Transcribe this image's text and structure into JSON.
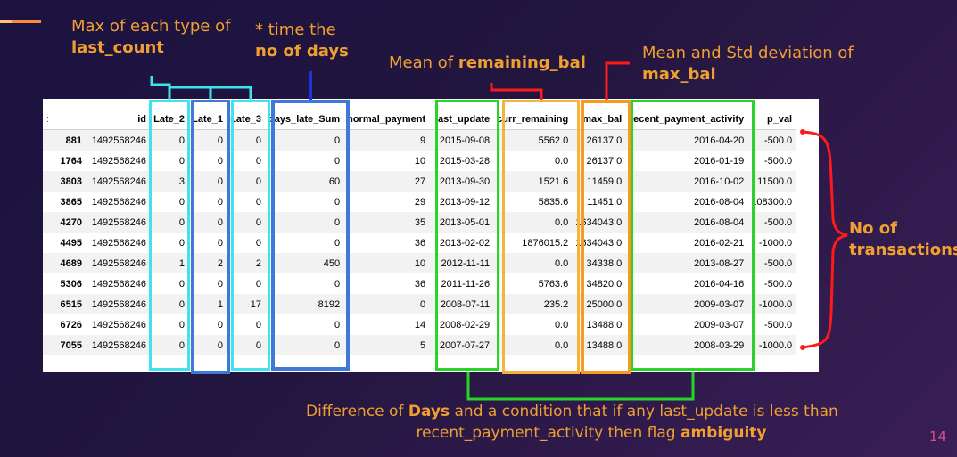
{
  "annotations": {
    "max_each_type": {
      "line1": "Max of each type of",
      "line2": "last_count"
    },
    "time_days": {
      "line1": "*  time the",
      "line2": "no of days"
    },
    "mean_remaining": {
      "prefix": "Mean of ",
      "bold": "remaining_bal"
    },
    "mean_std": {
      "line1": "Mean and Std deviation of",
      "line2": "max_bal"
    },
    "no_of_transactions": {
      "line1": "No of",
      "line2": "transactions"
    },
    "difference": {
      "prefix": "Difference of ",
      "bold1": "Days",
      "middle": " and a condition that if any last_update is less than",
      "line2_prefix": "recent_payment_activity then flag ",
      "bold2": "ambiguity"
    }
  },
  "table": {
    "corner_mark": ":",
    "columns": [
      "",
      "id",
      "Late_2",
      "Late_1",
      "Late_3",
      "days_late_Sum",
      "normal_payment",
      "last_update",
      "curr_remaining",
      "max_bal",
      "recent_payment_activity",
      "p_val"
    ],
    "rows": [
      [
        "881",
        "1492568246",
        "0",
        "0",
        "0",
        "0",
        "9",
        "2015-09-08",
        "5562.0",
        "26137.0",
        "2016-04-20",
        "-500.0"
      ],
      [
        "1764",
        "1492568246",
        "0",
        "0",
        "0",
        "0",
        "10",
        "2015-03-28",
        "0.0",
        "26137.0",
        "2016-01-19",
        "-500.0"
      ],
      [
        "3803",
        "1492568246",
        "3",
        "0",
        "0",
        "60",
        "27",
        "2013-09-30",
        "1521.6",
        "11459.0",
        "2016-10-02",
        "11500.0"
      ],
      [
        "3865",
        "1492568246",
        "0",
        "0",
        "0",
        "0",
        "29",
        "2013-09-12",
        "5835.6",
        "11451.0",
        "2016-08-04",
        "108300.0"
      ],
      [
        "4270",
        "1492568246",
        "0",
        "0",
        "0",
        "0",
        "35",
        "2013-05-01",
        "0.0",
        "1634043.0",
        "2016-08-04",
        "-500.0"
      ],
      [
        "4495",
        "1492568246",
        "0",
        "0",
        "0",
        "0",
        "36",
        "2013-02-02",
        "1876015.2",
        "1634043.0",
        "2016-02-21",
        "-1000.0"
      ],
      [
        "4689",
        "1492568246",
        "1",
        "2",
        "2",
        "450",
        "10",
        "2012-11-11",
        "0.0",
        "34338.0",
        "2013-08-27",
        "-500.0"
      ],
      [
        "5306",
        "1492568246",
        "0",
        "0",
        "0",
        "0",
        "36",
        "2011-11-26",
        "5763.6",
        "34820.0",
        "2016-04-16",
        "-500.0"
      ],
      [
        "6515",
        "1492568246",
        "0",
        "1",
        "17",
        "8192",
        "0",
        "2008-07-11",
        "235.2",
        "25000.0",
        "2009-03-07",
        "-1000.0"
      ],
      [
        "6726",
        "1492568246",
        "0",
        "0",
        "0",
        "0",
        "14",
        "2008-02-29",
        "0.0",
        "13488.0",
        "2009-03-07",
        "-500.0"
      ],
      [
        "7055",
        "1492568246",
        "0",
        "0",
        "0",
        "0",
        "5",
        "2007-07-27",
        "0.0",
        "13488.0",
        "2008-03-29",
        "-1000.0"
      ]
    ]
  },
  "page_number": "14",
  "colors": {
    "orange": "#f0a030",
    "cyan": "#3fe3f0",
    "blue": "#3f78d8",
    "green": "#27d427",
    "yellow_orange": "#f4b33c",
    "orange_box": "#f79a1e",
    "red": "#ff1a1a",
    "page_number": "#d4508c"
  }
}
